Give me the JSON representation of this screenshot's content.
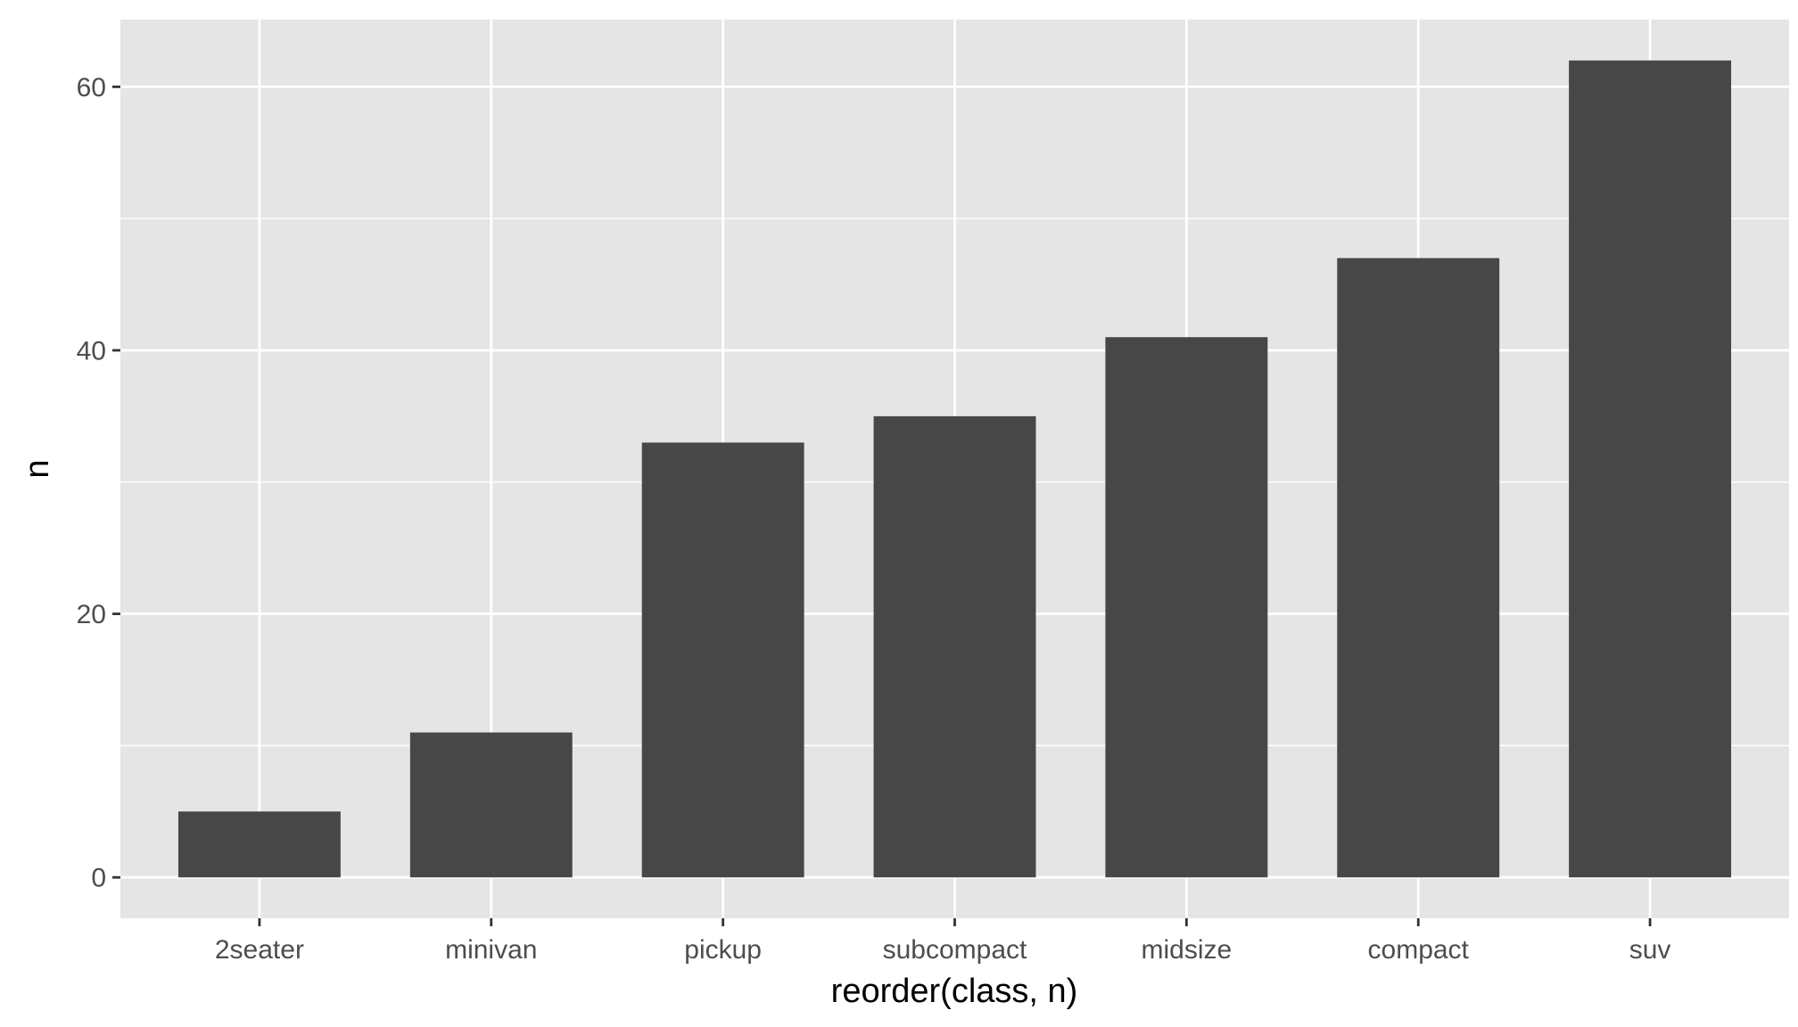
{
  "chart_data": {
    "type": "bar",
    "title": "",
    "xlabel": "reorder(class, n)",
    "ylabel": "n",
    "categories": [
      "2seater",
      "minivan",
      "pickup",
      "subcompact",
      "midsize",
      "compact",
      "suv"
    ],
    "values": [
      5,
      11,
      33,
      35,
      41,
      47,
      62
    ],
    "ylim": [
      -3.1,
      65.1
    ],
    "yticks": [
      0,
      20,
      40,
      60
    ],
    "ytick_labels": [
      "0",
      "20",
      "40",
      "60"
    ],
    "grid": true,
    "legend": "none",
    "colors": {
      "panel": "#e5e5e5",
      "bar": "#474747",
      "grid": "#ffffff"
    }
  }
}
